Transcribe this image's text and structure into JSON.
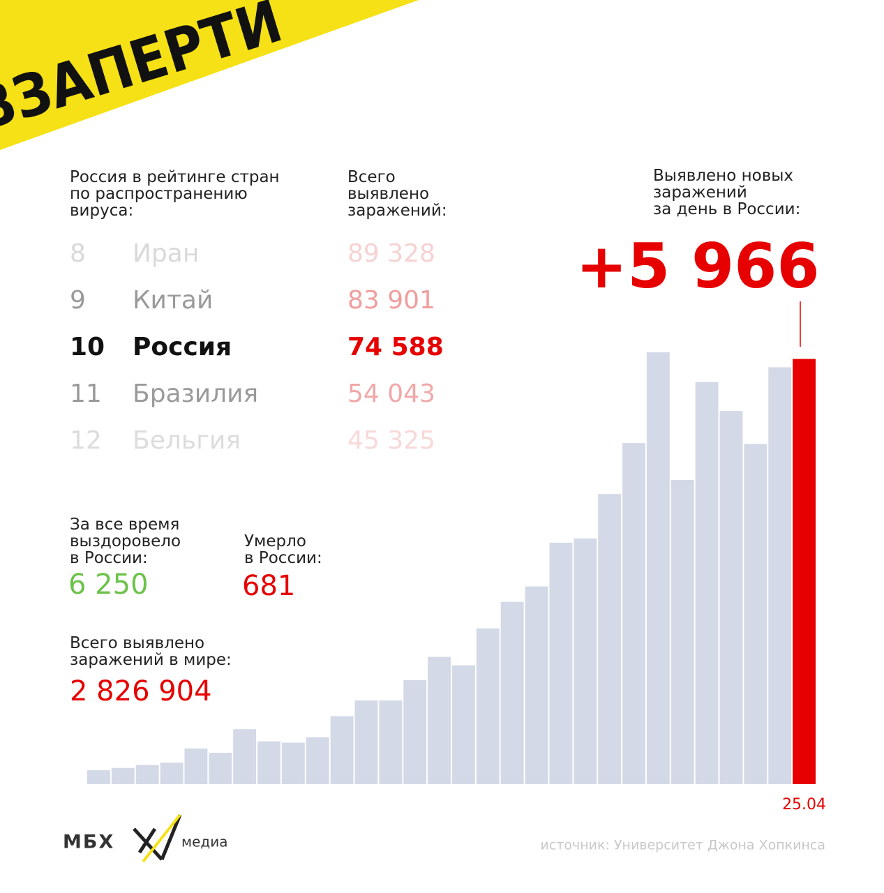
{
  "banner": "ВЗАПЕРТИ",
  "ranking": {
    "header": [
      "Россия в рейтинге стран",
      "по распространению",
      "вируса:"
    ],
    "totals_header": [
      "Всего",
      "выявлено",
      "заражений:"
    ],
    "rows": [
      {
        "rank": "8",
        "country": "Иран",
        "total": "89 328"
      },
      {
        "rank": "9",
        "country": "Китай",
        "total": "83 901"
      },
      {
        "rank": "10",
        "country": "Россия",
        "total": "74 588"
      },
      {
        "rank": "11",
        "country": "Бразилия",
        "total": "54 043"
      },
      {
        "rank": "12",
        "country": "Бельгия",
        "total": "45 325"
      }
    ]
  },
  "new_cases": {
    "header": [
      "Выявлено новых",
      "заражений",
      "за день в России:"
    ]
  },
  "recovered": {
    "label": [
      "За все время",
      "выздоровело",
      "в России:"
    ],
    "value": "6 250"
  },
  "died": {
    "label": [
      "Умерло",
      "в России:"
    ],
    "value": "681"
  },
  "world": {
    "label": [
      "Всего выявлено",
      "заражений в мире:"
    ],
    "value": "2 826 904"
  },
  "logo": {
    "name": "МБХ",
    "suffix": "медиа"
  },
  "source": "источник: Университет Джона Хопкинса",
  "chart_data": {
    "type": "bar",
    "categories": [
      null,
      null,
      null,
      null,
      null,
      null,
      null,
      null,
      null,
      null,
      null,
      null,
      null,
      null,
      null,
      null,
      null,
      null,
      null,
      null,
      null,
      null,
      null,
      null,
      null,
      null,
      null,
      null,
      null,
      "25.04"
    ],
    "values": [
      196,
      228,
      270,
      302,
      501,
      440,
      771,
      601,
      582,
      658,
      954,
      1175,
      1175,
      1459,
      1786,
      1667,
      2186,
      2558,
      2774,
      3388,
      3448,
      4070,
      4785,
      6060,
      4268,
      5642,
      5236,
      4774,
      5849,
      5966
    ],
    "value_labels": [
      null,
      null,
      null,
      null,
      null,
      null,
      null,
      null,
      null,
      null,
      null,
      null,
      null,
      null,
      null,
      null,
      null,
      null,
      null,
      null,
      null,
      null,
      null,
      null,
      null,
      null,
      null,
      null,
      null,
      "+5 966"
    ],
    "colors": {
      "default": "#d3d9e6",
      "highlight": "#e60000"
    },
    "ylim": [
      0,
      6000
    ]
  }
}
